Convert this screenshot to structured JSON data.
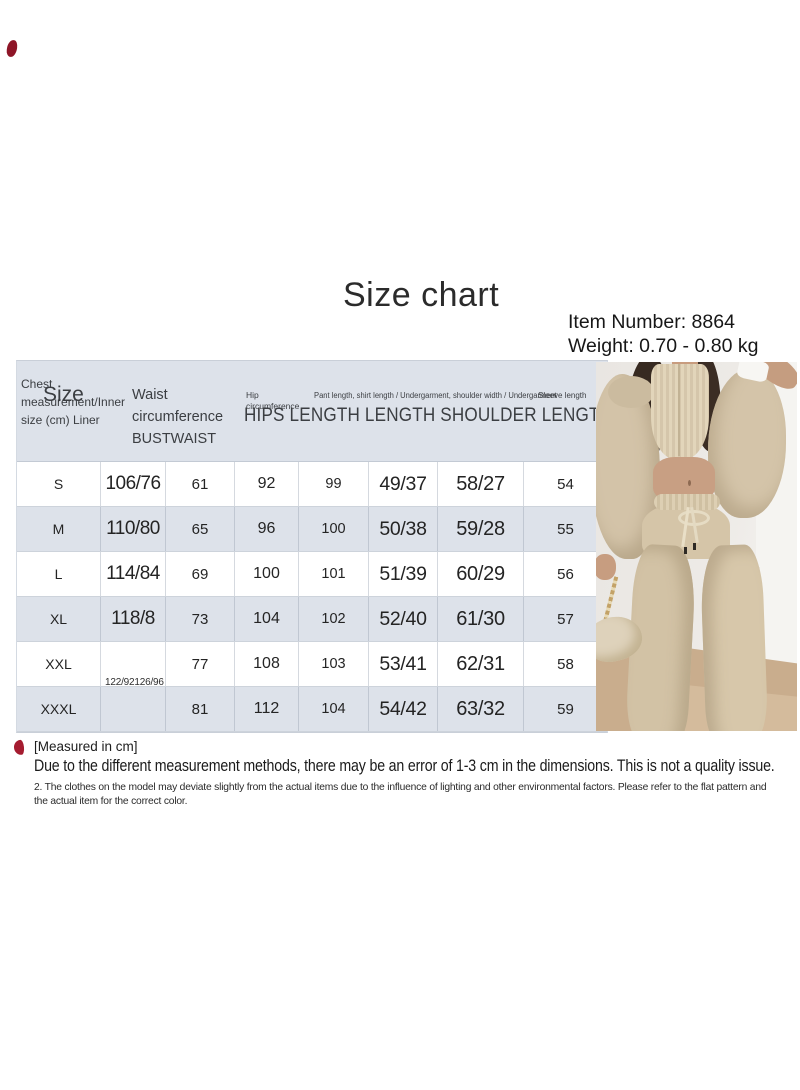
{
  "title": "Size chart",
  "product": {
    "item_number": "Item Number: 8864",
    "weight": "Weight: 0.70 - 0.80 kg"
  },
  "size_table": {
    "header": {
      "chest_line1": "Chest",
      "chest_line2": "measurement/Inner",
      "chest_line3": "size (cm) Liner",
      "size_label": "Size",
      "waist_line1": "Waist",
      "waist_line2": "circumference",
      "waist_line3": "BUSTWAIST",
      "hip_line1": "Hip",
      "hip_line2": "circumference",
      "pant_label": "Pant length, shirt length / Undergarment, shoulder width / Undergarment",
      "sleeve_label": "Sleeve length",
      "big_label": "HIPS LENGTH LENGTH SHOULDER LENGTH"
    },
    "rows": [
      [
        "S",
        "106/76",
        "61",
        "92",
        "99",
        "49/37",
        "58/27",
        "54"
      ],
      [
        "M",
        "110/80",
        "65",
        "96",
        "100",
        "50/38",
        "59/28",
        "55"
      ],
      [
        "L",
        "114/84",
        "69",
        "100",
        "101",
        "51/39",
        "60/29",
        "56"
      ],
      [
        "XL",
        "118/8",
        "73",
        "104",
        "102",
        "52/40",
        "61/30",
        "57"
      ],
      [
        "XXL",
        "",
        "77",
        "108",
        "103",
        "53/41",
        "62/31",
        "58"
      ],
      [
        "XXXL",
        "",
        "81",
        "112",
        "104",
        "54/42",
        "63/32",
        "59"
      ]
    ],
    "stray_note": "122/92126/96"
  },
  "notes": {
    "measured_label": "[Measured in cm]",
    "note1": "Due to the different measurement methods, there may be an error of 1-3 cm in the dimensions. This is not a quality issue.",
    "note2": "2. The clothes on the model may deviate slightly from the actual items due to the influence of lighting and other environmental factors. Please refer to the flat pattern and the actual item for the correct color."
  },
  "colors": {
    "accent_red": "#a51c30",
    "table_band": "#dde2ea",
    "table_border": "#c9cfd8",
    "photo_beige": "#d3c3a8"
  }
}
